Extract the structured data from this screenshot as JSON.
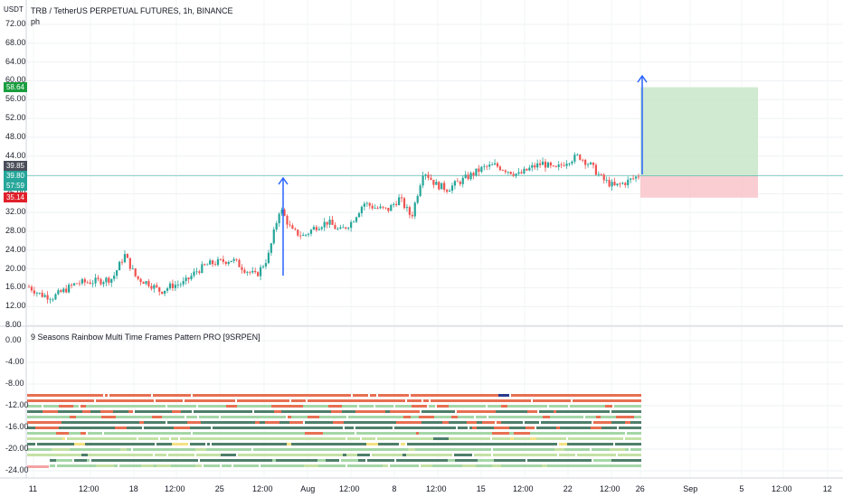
{
  "chart_header": {
    "currency": "USDT",
    "symbol_line": "TRB / TetherUS PERPETUAL FUTURES, 1h, BINANCE",
    "sub_label": "ph"
  },
  "price_tags": {
    "target": "58.64",
    "last": "39.85",
    "entry": "39.80",
    "countdown": "57:59",
    "stop": "35.14"
  },
  "indicator": {
    "title": "9 Seasons Rainbow Multi Time Frames Pattern PRO [9SRPEN]"
  },
  "colors": {
    "up_candle": "#26a69a",
    "down_candle": "#ef5350",
    "target_zone": "#c8e6c9",
    "stop_zone": "#f8c8cc",
    "arrow": "#2962ff",
    "entry_line": "#4caf50",
    "grid": "#eef0f3",
    "stripe_green": "#a5d6a7",
    "stripe_lime": "#c5e1a5",
    "stripe_dark": "#4e7f6b",
    "stripe_red": "#e76f51",
    "stripe_yellow": "#f4e285",
    "stripe_blue": "#2d3a8c"
  },
  "chart_data": {
    "type": "candlestick",
    "price_axis": [
      "72.00",
      "68.00",
      "64.00",
      "60.00",
      "56.00",
      "52.00",
      "48.00",
      "44.00",
      "40.00",
      "36.00",
      "32.00",
      "28.00",
      "24.00",
      "20.00",
      "16.00",
      "12.00",
      "8.00"
    ],
    "indicator_axis": [
      "0.00",
      "-4.00",
      "-8.00",
      "-12.00",
      "-16.00",
      "-20.00",
      "-24.00"
    ],
    "x_labels": [
      "11",
      "12:00",
      "18",
      "12:00",
      "25",
      "12:00",
      "Aug",
      "12:00",
      "8",
      "12:00",
      "15",
      "12:00",
      "22",
      "12:00",
      "26",
      "Sep",
      "5",
      "12:00",
      "12"
    ],
    "ylim": [
      8,
      72
    ],
    "approx_closes": [
      16.2,
      14.5,
      14.0,
      15.5,
      17.0,
      17.2,
      17.5,
      18.0,
      23.0,
      18.0,
      17.0,
      15.2,
      16.5,
      17.0,
      19.5,
      21.0,
      21.5,
      22.0,
      20.0,
      18.5,
      22.5,
      33.0,
      28.0,
      27.0,
      29.0,
      30.0,
      28.0,
      30.0,
      34.0,
      33.0,
      32.5,
      35.0,
      31.0,
      41.0,
      38.0,
      37.0,
      38.5,
      40.0,
      41.5,
      42.0,
      41.0,
      40.0,
      41.5,
      42.5,
      41.0,
      43.0,
      44.0,
      42.0,
      39.0,
      37.5,
      38.5,
      39.8
    ],
    "position": {
      "target": 58.64,
      "entry": 39.8,
      "stop": 35.14
    }
  }
}
